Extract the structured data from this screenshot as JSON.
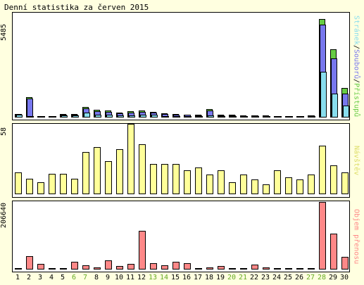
{
  "title": "Denní statistika za červen 2015",
  "colors": {
    "background": "#ffffe0",
    "panel": "#ffffff",
    "pages": "#66cc44",
    "files": "#7777ee",
    "hits": "#88ddee",
    "visits": "#ffff99",
    "volume": "#ff8888",
    "weekend_label": "#66aa22"
  },
  "chart_data": [
    {
      "type": "bar",
      "name": "Přístupy/Soubory/Stránky",
      "legend": [
        "Stránek",
        "/",
        "Souborů",
        "/",
        "Přístupů"
      ],
      "ymax_label": "5485",
      "ylim": [
        0,
        5485
      ],
      "categories": [
        "1",
        "2",
        "3",
        "4",
        "5",
        "6",
        "7",
        "8",
        "9",
        "10",
        "11",
        "12",
        "13",
        "14",
        "15",
        "16",
        "17",
        "18",
        "19",
        "20",
        "21",
        "22",
        "23",
        "24",
        "25",
        "26",
        "27",
        "28",
        "29",
        "30"
      ],
      "weekend_days": [
        "6",
        "7",
        "13",
        "14",
        "20",
        "21",
        "27",
        "28"
      ],
      "series": [
        {
          "name": "Přístupů",
          "values": [
            210,
            1120,
            90,
            60,
            200,
            190,
            600,
            440,
            380,
            280,
            360,
            390,
            310,
            220,
            190,
            170,
            160,
            460,
            160,
            150,
            110,
            120,
            110,
            90,
            90,
            80,
            120,
            5485,
            3800,
            1630
          ]
        },
        {
          "name": "Souborů",
          "values": [
            180,
            1050,
            70,
            50,
            170,
            160,
            520,
            360,
            320,
            220,
            290,
            330,
            260,
            180,
            160,
            140,
            130,
            400,
            130,
            110,
            90,
            100,
            90,
            80,
            70,
            70,
            100,
            5180,
            3300,
            1350
          ]
        },
        {
          "name": "Stránek",
          "values": [
            150,
            40,
            40,
            20,
            110,
            100,
            270,
            160,
            150,
            120,
            130,
            160,
            140,
            80,
            80,
            80,
            60,
            110,
            70,
            60,
            50,
            60,
            50,
            30,
            30,
            30,
            50,
            2550,
            1350,
            670
          ]
        }
      ]
    },
    {
      "type": "bar",
      "name": "Návštěv",
      "ymax_label": "58",
      "ylim": [
        0,
        58
      ],
      "categories": [
        "1",
        "2",
        "3",
        "4",
        "5",
        "6",
        "7",
        "8",
        "9",
        "10",
        "11",
        "12",
        "13",
        "14",
        "15",
        "16",
        "17",
        "18",
        "19",
        "20",
        "21",
        "22",
        "23",
        "24",
        "25",
        "26",
        "27",
        "28",
        "29",
        "30"
      ],
      "values": [
        18,
        13,
        10,
        17,
        17,
        13,
        35,
        39,
        27,
        37,
        58,
        41,
        25,
        25,
        25,
        20,
        22,
        16,
        20,
        10,
        16,
        12,
        8,
        20,
        14,
        12,
        16,
        40,
        24,
        18
      ]
    },
    {
      "type": "bar",
      "name": "Objem přenosu",
      "ymax_label": "206640",
      "ylim": [
        0,
        206640
      ],
      "categories": [
        "1",
        "2",
        "3",
        "4",
        "5",
        "6",
        "7",
        "8",
        "9",
        "10",
        "11",
        "12",
        "13",
        "14",
        "15",
        "16",
        "17",
        "18",
        "19",
        "20",
        "21",
        "22",
        "23",
        "24",
        "25",
        "26",
        "27",
        "28",
        "29",
        "30"
      ],
      "values": [
        3000,
        42000,
        17000,
        3500,
        3500,
        24000,
        12000,
        7000,
        29000,
        10000,
        18000,
        118000,
        20000,
        13000,
        23000,
        20000,
        4000,
        6000,
        11000,
        3000,
        2500,
        15000,
        6000,
        3500,
        2500,
        2500,
        2500,
        206640,
        110000,
        38000
      ]
    }
  ]
}
